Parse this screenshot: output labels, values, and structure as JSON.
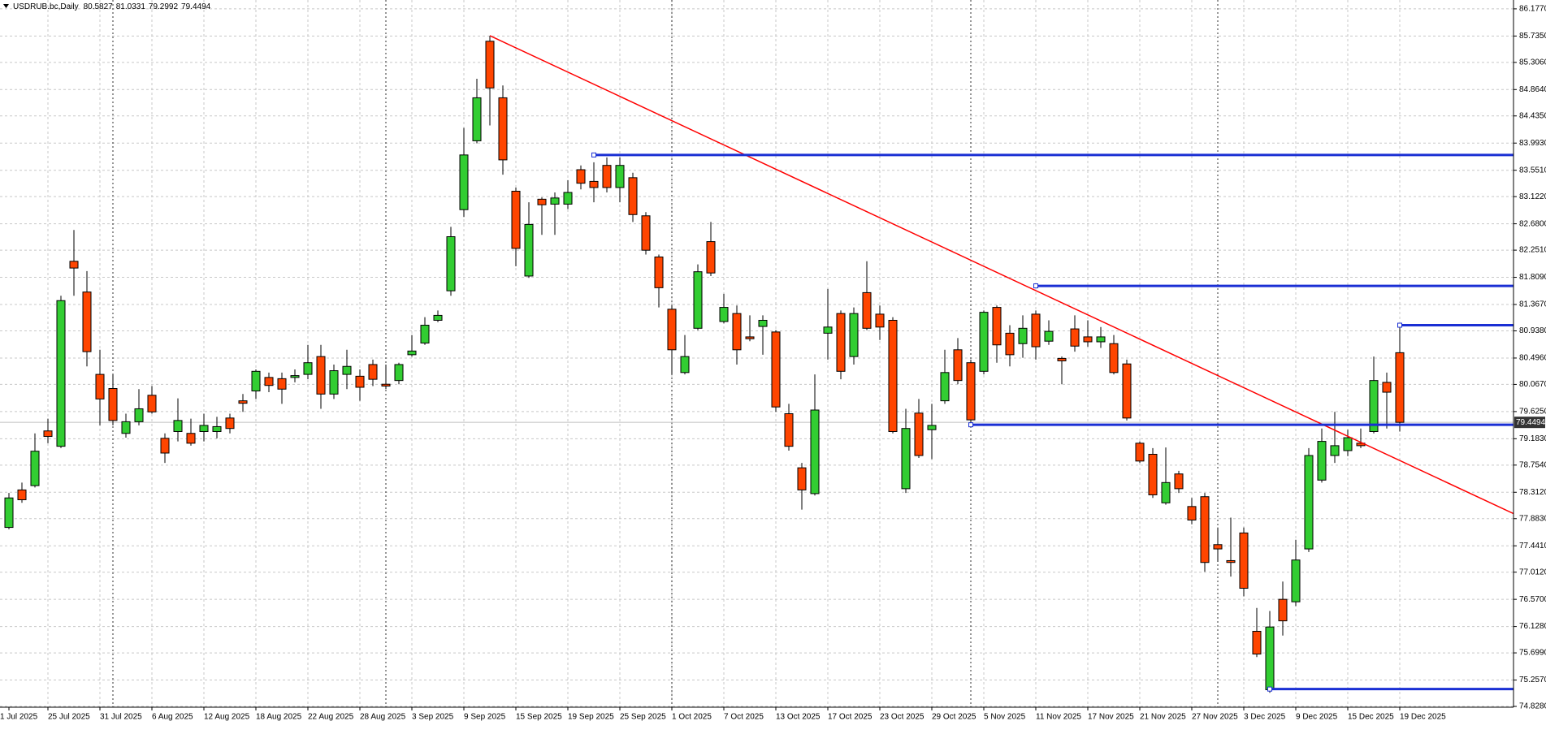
{
  "chart_data": {
    "type": "candlestick",
    "title": "USDRUB.bc,Daily",
    "categories": [
      "1 Jul 2025",
      null,
      null,
      "25 Jul 2025",
      null,
      null,
      null,
      "31 Jul 2025",
      null,
      null,
      null,
      "6 Aug 2025",
      null,
      null,
      null,
      "12 Aug 2025",
      null,
      null,
      null,
      "18 Aug 2025",
      null,
      null,
      null,
      "22 Aug 2025",
      null,
      null,
      null,
      "28 Aug 2025",
      null,
      null,
      null,
      "3 Sep 2025",
      null,
      null,
      null,
      "9 Sep 2025",
      null,
      null,
      null,
      "15 Sep 2025",
      null,
      null,
      null,
      "19 Sep 2025",
      null,
      null,
      null,
      "25 Sep 2025",
      null,
      null,
      null,
      "1 Oct 2025",
      null,
      null,
      null,
      "7 Oct 2025",
      null,
      null,
      null,
      "13 Oct 2025",
      null,
      null,
      null,
      "17 Oct 2025",
      null,
      null,
      null,
      "23 Oct 2025",
      null,
      null,
      null,
      "29 Oct 2025",
      null,
      null,
      null,
      "5 Nov 2025",
      null,
      null,
      null,
      "11 Nov 2025",
      null,
      null,
      null,
      "17 Nov 2025",
      null,
      null,
      null,
      "21 Nov 2025",
      null,
      null,
      null,
      "27 Nov 2025",
      null,
      null,
      null,
      "3 Dec 2025",
      null,
      null,
      null,
      "9 Dec 2025",
      null,
      null,
      null,
      "15 Dec 2025",
      null,
      null,
      null,
      "19 Dec 2025"
    ],
    "open": [
      77.74,
      78.35,
      78.42,
      79.31,
      79.06,
      82.07,
      81.57,
      80.23,
      80.0,
      79.27,
      79.46,
      79.89,
      79.19,
      79.3,
      79.27,
      79.3,
      79.3,
      79.52,
      79.8,
      79.96,
      80.18,
      80.16,
      80.18,
      80.23,
      80.52,
      79.91,
      80.23,
      80.2,
      80.39,
      80.07,
      80.13,
      80.55,
      80.74,
      81.11,
      81.59,
      82.91,
      84.03,
      85.65,
      84.73,
      83.21,
      81.83,
      83.08,
      83.0,
      83.0,
      83.56,
      83.37,
      83.63,
      83.27,
      83.43,
      82.81,
      82.14,
      81.29,
      80.26,
      80.98,
      82.39,
      81.09,
      81.22,
      80.84,
      81.01,
      80.92,
      79.59,
      78.71,
      78.29,
      80.9,
      81.22,
      80.52,
      81.56,
      81.21,
      81.11,
      78.37,
      79.6,
      79.33,
      79.8,
      80.63,
      80.42,
      80.28,
      81.32,
      80.9,
      80.73,
      81.21,
      80.77,
      80.49,
      80.97,
      80.84,
      80.76,
      80.73,
      80.4,
      79.11,
      78.93,
      78.14,
      78.61,
      78.08,
      78.24,
      77.46,
      77.2,
      77.65,
      76.05,
      75.1,
      76.57,
      76.53,
      77.39,
      78.51,
      78.91,
      78.99,
      79.11,
      79.3,
      80.1,
      80.5827
    ],
    "high": [
      78.3,
      78.47,
      79.27,
      79.51,
      81.51,
      82.58,
      81.91,
      80.63,
      80.23,
      79.59,
      79.99,
      80.04,
      79.27,
      79.84,
      79.51,
      79.59,
      79.54,
      79.59,
      79.91,
      80.31,
      80.26,
      80.26,
      80.31,
      80.71,
      80.71,
      80.39,
      80.63,
      80.31,
      80.47,
      80.39,
      80.42,
      80.87,
      81.16,
      81.27,
      82.63,
      84.24,
      85.04,
      85.74,
      84.93,
      83.27,
      83.03,
      83.11,
      83.19,
      83.39,
      83.63,
      83.68,
      83.76,
      83.76,
      83.51,
      82.87,
      82.18,
      81.35,
      80.87,
      82.02,
      82.71,
      81.54,
      81.35,
      81.19,
      81.19,
      80.95,
      79.75,
      78.79,
      80.23,
      81.62,
      81.27,
      81.32,
      82.07,
      81.35,
      81.16,
      79.67,
      79.83,
      79.75,
      80.63,
      80.82,
      80.47,
      81.27,
      81.35,
      81.03,
      81.19,
      81.27,
      81.11,
      80.52,
      81.19,
      81.11,
      81.0,
      80.87,
      80.47,
      79.14,
      79.03,
      79.04,
      78.66,
      78.22,
      78.3,
      77.74,
      77.9,
      77.74,
      76.43,
      76.38,
      76.86,
      77.54,
      79.03,
      79.35,
      79.62,
      79.33,
      79.35,
      80.52,
      80.26,
      81.0331
    ],
    "low": [
      77.71,
      78.14,
      78.39,
      79.11,
      79.03,
      81.51,
      80.36,
      79.4,
      79.4,
      79.2,
      79.4,
      79.59,
      78.79,
      79.14,
      79.07,
      79.14,
      79.19,
      79.27,
      79.62,
      79.83,
      79.94,
      79.75,
      80.1,
      80.15,
      79.67,
      79.83,
      79.99,
      79.8,
      80.04,
      79.99,
      80.07,
      80.52,
      80.71,
      81.08,
      81.51,
      82.79,
      83.99,
      84.28,
      83.48,
      81.99,
      81.8,
      82.5,
      82.5,
      82.92,
      83.24,
      83.03,
      83.19,
      83.03,
      82.71,
      82.18,
      81.32,
      80.23,
      80.23,
      80.95,
      81.83,
      81.06,
      80.39,
      80.77,
      80.55,
      79.62,
      78.99,
      78.03,
      78.26,
      80.47,
      80.15,
      80.39,
      80.95,
      80.79,
      79.27,
      78.3,
      78.87,
      78.85,
      79.75,
      80.07,
      79.4,
      80.23,
      80.42,
      80.36,
      80.5,
      80.47,
      80.71,
      80.07,
      80.6,
      80.68,
      80.66,
      80.23,
      79.48,
      78.79,
      78.22,
      78.11,
      78.3,
      77.79,
      77.02,
      77.18,
      76.94,
      76.62,
      75.63,
      75.05,
      75.98,
      76.46,
      77.34,
      78.47,
      78.79,
      78.9,
      79.03,
      79.27,
      79.35,
      79.2992
    ],
    "close": [
      78.22,
      78.19,
      78.98,
      79.22,
      81.43,
      81.96,
      80.6,
      79.83,
      79.48,
      79.46,
      79.67,
      79.62,
      78.95,
      79.48,
      79.11,
      79.4,
      79.38,
      79.35,
      79.76,
      80.28,
      80.05,
      79.99,
      80.21,
      80.42,
      79.91,
      80.29,
      80.36,
      80.02,
      80.15,
      80.04,
      80.39,
      80.61,
      81.03,
      81.19,
      82.47,
      83.8,
      84.73,
      84.89,
      83.72,
      82.28,
      82.67,
      82.99,
      83.1,
      83.19,
      83.34,
      83.27,
      83.27,
      83.63,
      82.83,
      82.25,
      81.64,
      80.63,
      80.52,
      81.9,
      81.88,
      81.32,
      80.63,
      80.81,
      81.11,
      79.7,
      79.06,
      78.35,
      79.65,
      81.0,
      80.28,
      81.22,
      80.98,
      81.0,
      79.3,
      79.35,
      78.91,
      79.4,
      80.26,
      80.13,
      79.49,
      81.24,
      80.71,
      80.55,
      80.98,
      80.68,
      80.93,
      80.45,
      80.69,
      80.76,
      80.84,
      80.26,
      79.52,
      78.82,
      78.27,
      78.47,
      78.37,
      77.86,
      77.17,
      77.39,
      77.17,
      76.75,
      75.68,
      76.12,
      76.22,
      77.21,
      78.91,
      79.14,
      79.07,
      79.2,
      79.07,
      80.13,
      79.94,
      79.4494
    ],
    "up_color": "#32cd32",
    "down_color": "#ff4500",
    "wick_color": "#000000",
    "ylim": [
      74.815,
      86.321
    ],
    "yticks": [
      {
        "value": 86.177,
        "label": "86.1770"
      },
      {
        "value": 85.735,
        "label": "85.7350"
      },
      {
        "value": 85.306,
        "label": "85.3060"
      },
      {
        "value": 84.864,
        "label": "84.8640"
      },
      {
        "value": 84.435,
        "label": "84.4350"
      },
      {
        "value": 83.993,
        "label": "83.9930"
      },
      {
        "value": 83.551,
        "label": "83.5510"
      },
      {
        "value": 83.122,
        "label": "83.1220"
      },
      {
        "value": 82.68,
        "label": "82.6800"
      },
      {
        "value": 82.251,
        "label": "82.2510"
      },
      {
        "value": 81.809,
        "label": "81.8090"
      },
      {
        "value": 81.367,
        "label": "81.3670"
      },
      {
        "value": 80.938,
        "label": "80.9380"
      },
      {
        "value": 80.496,
        "label": "80.4960"
      },
      {
        "value": 80.067,
        "label": "80.0670"
      },
      {
        "value": 79.625,
        "label": "79.6250"
      },
      {
        "value": 79.183,
        "label": "79.1830"
      },
      {
        "value": 78.754,
        "label": "78.7540"
      },
      {
        "value": 78.312,
        "label": "78.3120"
      },
      {
        "value": 77.883,
        "label": "77.8830"
      },
      {
        "value": 77.441,
        "label": "77.4410"
      },
      {
        "value": 77.012,
        "label": "77.0120"
      },
      {
        "value": 76.57,
        "label": "76.5700"
      },
      {
        "value": 76.128,
        "label": "76.1280"
      },
      {
        "value": 75.699,
        "label": "75.6990"
      },
      {
        "value": 75.257,
        "label": "75.2570"
      },
      {
        "value": 74.828,
        "label": "74.8280"
      }
    ],
    "grid": true,
    "separators": [
      8,
      29,
      51,
      74,
      93
    ],
    "levels": [
      {
        "value": 83.8,
        "start": 45
      },
      {
        "value": 81.67,
        "start": 79
      },
      {
        "value": 81.03,
        "start": 107
      },
      {
        "value": 79.41,
        "start": 74
      },
      {
        "value": 75.11,
        "start": 97
      }
    ],
    "level_color": "#1a2fd4",
    "trendline": {
      "color": "#ff0000",
      "points": [
        [
          37,
          85.74
        ],
        [
          116,
          77.94
        ]
      ]
    }
  }
}
